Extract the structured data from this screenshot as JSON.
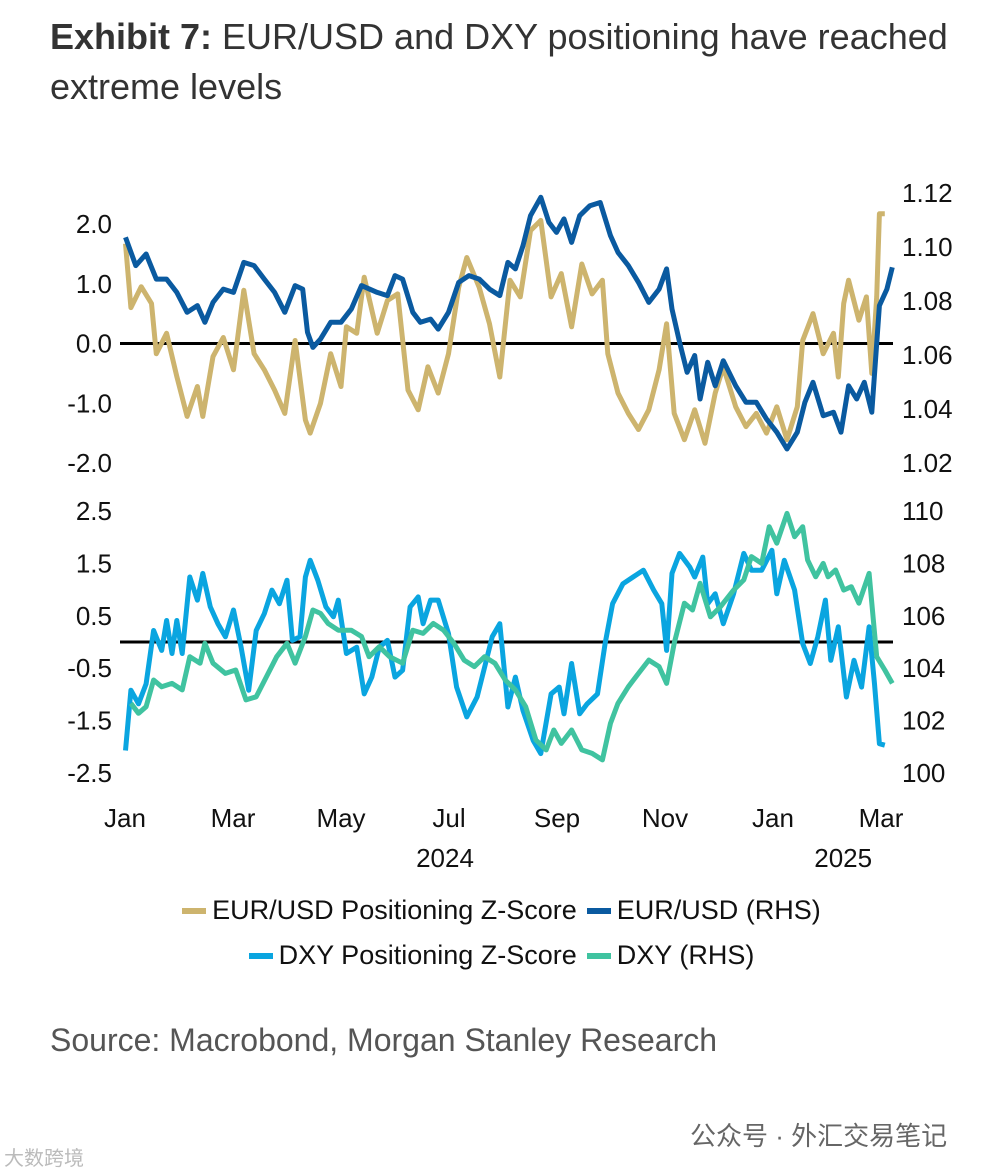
{
  "title": {
    "bold": "Exhibit 7:",
    "text": " EUR/USD and DXY positioning have reached extreme levels"
  },
  "source": "Source: Macrobond, Morgan Stanley Research",
  "watermark": "公众号 · 外汇交易笔记",
  "watermark2": "大数跨境",
  "colors": {
    "eur_z": "#CDB46E",
    "eur": "#0A5AA0",
    "dxy_z": "#0AA5E0",
    "dxy": "#40C3A0"
  },
  "chart_data": [
    {
      "type": "line",
      "panel": "top",
      "x_unit": "months since Jan 2024",
      "xlim": [
        0,
        14.3
      ],
      "x_ticks": [
        {
          "m": 0,
          "label": "Jan"
        },
        {
          "m": 2,
          "label": "Mar"
        },
        {
          "m": 4,
          "label": "May"
        },
        {
          "m": 6,
          "label": "Jul"
        },
        {
          "m": 8,
          "label": "Sep"
        },
        {
          "m": 10,
          "label": "Nov"
        },
        {
          "m": 12,
          "label": "Jan"
        },
        {
          "m": 14,
          "label": "Mar"
        }
      ],
      "year_labels": [
        {
          "m": 6,
          "label": "2024"
        },
        {
          "m": 13.3,
          "label": "2025"
        }
      ],
      "ylim_left": [
        -2.0,
        2.0
      ],
      "yticks_left": [
        "2.0",
        "1.0",
        "0.0",
        "-1.0",
        "-2.0"
      ],
      "ylim_right": [
        1.02,
        1.12
      ],
      "yticks_right": [
        "1.12",
        "1.10",
        "1.08",
        "1.06",
        "1.04",
        "1.02"
      ],
      "series": [
        {
          "name": "EUR/USD Positioning Z-Score",
          "axis": "left",
          "color_key": "eur_z",
          "x": [
            0.01,
            0.11,
            0.3,
            0.49,
            0.58,
            0.77,
            0.96,
            1.15,
            1.34,
            1.44,
            1.63,
            1.82,
            2.01,
            2.2,
            2.39,
            2.58,
            2.77,
            2.96,
            3.15,
            3.34,
            3.43,
            3.62,
            3.81,
            4.0,
            4.1,
            4.29,
            4.43,
            4.67,
            4.86,
            5.05,
            5.24,
            5.43,
            5.61,
            5.8,
            5.99,
            6.18,
            6.33,
            6.56,
            6.75,
            6.94,
            7.13,
            7.32,
            7.51,
            7.7,
            7.89,
            8.08,
            8.27,
            8.46,
            8.65,
            8.84,
            8.94,
            9.13,
            9.32,
            9.51,
            9.7,
            9.89,
            10.03,
            10.17,
            10.36,
            10.55,
            10.74,
            10.93,
            11.08,
            11.31,
            11.5,
            11.69,
            11.88,
            12.07,
            12.26,
            12.45,
            12.55,
            12.74,
            12.93,
            13.12,
            13.21,
            13.31,
            13.4,
            13.59,
            13.73,
            13.83,
            13.92,
            13.97,
            14.07
          ],
          "y": [
            1.67,
            0.6,
            0.95,
            0.67,
            -0.17,
            0.17,
            -0.55,
            -1.22,
            -0.72,
            -1.22,
            -0.22,
            0.1,
            -0.44,
            0.89,
            -0.17,
            -0.44,
            -0.78,
            -1.17,
            0.05,
            -1.28,
            -1.5,
            -1.0,
            -0.17,
            -0.72,
            0.28,
            0.17,
            1.11,
            0.17,
            0.72,
            0.83,
            -0.78,
            -1.11,
            -0.39,
            -0.83,
            -0.17,
            0.94,
            1.44,
            0.94,
            0.33,
            -0.56,
            1.06,
            0.78,
            1.89,
            2.06,
            0.78,
            1.17,
            0.28,
            1.33,
            0.83,
            1.06,
            -0.17,
            -0.83,
            -1.17,
            -1.44,
            -1.11,
            -0.44,
            0.33,
            -1.17,
            -1.61,
            -1.11,
            -1.67,
            -0.83,
            -0.39,
            -1.06,
            -1.39,
            -1.17,
            -1.5,
            -1.06,
            -1.61,
            -1.06,
            0.05,
            0.5,
            -0.17,
            0.17,
            -0.56,
            0.67,
            1.06,
            0.39,
            0.78,
            -0.5,
            0.78,
            2.17,
            2.17
          ]
        },
        {
          "name": "EUR/USD (RHS)",
          "axis": "right",
          "color_key": "eur",
          "x": [
            0.01,
            0.2,
            0.39,
            0.58,
            0.77,
            0.96,
            1.15,
            1.34,
            1.48,
            1.63,
            1.82,
            2.01,
            2.2,
            2.39,
            2.58,
            2.77,
            2.96,
            3.15,
            3.29,
            3.38,
            3.48,
            3.62,
            3.81,
            4.0,
            4.19,
            4.38,
            4.67,
            4.86,
            5.0,
            5.14,
            5.33,
            5.47,
            5.66,
            5.8,
            5.99,
            6.18,
            6.37,
            6.56,
            6.75,
            6.94,
            7.09,
            7.23,
            7.37,
            7.51,
            7.7,
            7.85,
            7.99,
            8.13,
            8.27,
            8.42,
            8.61,
            8.8,
            8.99,
            9.13,
            9.32,
            9.51,
            9.7,
            9.89,
            10.03,
            10.13,
            10.27,
            10.41,
            10.55,
            10.65,
            10.79,
            10.93,
            11.08,
            11.31,
            11.5,
            11.69,
            11.88,
            12.07,
            12.26,
            12.45,
            12.59,
            12.74,
            12.93,
            13.12,
            13.26,
            13.4,
            13.55,
            13.69,
            13.83,
            13.97,
            14.11,
            14.21
          ],
          "y": [
            1.1036,
            1.0931,
            1.0974,
            1.0881,
            1.0881,
            1.0832,
            1.0758,
            1.0783,
            1.0721,
            1.0795,
            1.0844,
            1.0832,
            1.0943,
            1.0931,
            1.0881,
            1.0832,
            1.0758,
            1.0857,
            1.0844,
            1.0684,
            1.0628,
            1.0659,
            1.0721,
            1.0721,
            1.077,
            1.0857,
            1.0832,
            1.082,
            1.0894,
            1.0881,
            1.0758,
            1.0721,
            1.0733,
            1.0696,
            1.0758,
            1.0869,
            1.0894,
            1.0881,
            1.0844,
            1.082,
            1.0943,
            1.0919,
            1.1005,
            1.1116,
            1.1184,
            1.1091,
            1.1054,
            1.1104,
            1.1017,
            1.1116,
            1.1153,
            1.1165,
            1.1042,
            1.098,
            1.0931,
            1.0869,
            1.0795,
            1.0844,
            1.0919,
            1.077,
            1.0647,
            1.0536,
            1.0598,
            1.0437,
            1.0573,
            1.0486,
            1.0579,
            1.0486,
            1.0425,
            1.0425,
            1.0363,
            1.0314,
            1.0252,
            1.0314,
            1.0425,
            1.0499,
            1.0375,
            1.0388,
            1.0314,
            1.0486,
            1.0437,
            1.0499,
            1.0388,
            1.0783,
            1.0844,
            1.0925
          ]
        }
      ]
    },
    {
      "type": "line",
      "panel": "bottom",
      "x_unit": "months since Jan 2024",
      "xlim": [
        0,
        14.3
      ],
      "ylim_left": [
        -2.5,
        2.5
      ],
      "yticks_left": [
        "2.5",
        "1.5",
        "0.5",
        "-0.5",
        "-1.5",
        "-2.5"
      ],
      "ylim_right": [
        100,
        110
      ],
      "yticks_right": [
        "110",
        "108",
        "106",
        "104",
        "102",
        "100"
      ],
      "series": [
        {
          "name": "DXY Positioning Z-Score",
          "axis": "left",
          "color_key": "dxy_z",
          "x": [
            0.01,
            0.11,
            0.25,
            0.39,
            0.53,
            0.68,
            0.77,
            0.87,
            0.96,
            1.06,
            1.2,
            1.34,
            1.44,
            1.58,
            1.72,
            1.86,
            2.01,
            2.15,
            2.29,
            2.43,
            2.58,
            2.72,
            2.86,
            3.0,
            3.1,
            3.24,
            3.34,
            3.43,
            3.57,
            3.72,
            3.86,
            3.95,
            4.1,
            4.29,
            4.43,
            4.57,
            4.71,
            4.86,
            5.0,
            5.14,
            5.28,
            5.43,
            5.52,
            5.66,
            5.8,
            5.99,
            6.14,
            6.33,
            6.52,
            6.66,
            6.8,
            6.94,
            7.09,
            7.23,
            7.37,
            7.56,
            7.7,
            7.89,
            8.04,
            8.13,
            8.27,
            8.42,
            8.56,
            8.75,
            8.89,
            9.03,
            9.22,
            9.41,
            9.6,
            9.79,
            9.94,
            10.03,
            10.13,
            10.27,
            10.46,
            10.55,
            10.7,
            10.79,
            10.93,
            11.08,
            11.27,
            11.46,
            11.6,
            11.79,
            11.98,
            12.07,
            12.21,
            12.4,
            12.55,
            12.69,
            12.83,
            12.97,
            13.07,
            13.21,
            13.36,
            13.5,
            13.64,
            13.78,
            13.88,
            13.97,
            14.07
          ],
          "y": [
            -2.07,
            -0.92,
            -1.18,
            -0.8,
            0.22,
            -0.16,
            0.41,
            -0.22,
            0.41,
            -0.22,
            1.24,
            0.8,
            1.31,
            0.67,
            0.35,
            0.1,
            0.61,
            -0.1,
            -0.92,
            0.22,
            0.54,
            0.99,
            0.73,
            1.18,
            0.03,
            0.1,
            1.24,
            1.56,
            1.18,
            0.67,
            0.48,
            0.8,
            -0.22,
            -0.1,
            -0.99,
            -0.67,
            -0.1,
            0.03,
            -0.67,
            -0.54,
            0.67,
            0.86,
            0.35,
            0.8,
            0.8,
            0.16,
            -0.86,
            -1.43,
            -1.05,
            -0.48,
            0.1,
            0.35,
            -1.24,
            -0.67,
            -1.31,
            -1.88,
            -2.13,
            -0.99,
            -0.86,
            -1.37,
            -0.41,
            -1.37,
            -1.18,
            -0.99,
            -0.03,
            0.73,
            1.11,
            1.24,
            1.37,
            0.99,
            0.73,
            -0.16,
            1.31,
            1.69,
            1.43,
            1.24,
            1.62,
            0.73,
            0.92,
            0.35,
            0.92,
            1.69,
            1.37,
            1.37,
            1.75,
            0.92,
            1.56,
            0.99,
            -0.03,
            -0.41,
            0.1,
            0.8,
            -0.35,
            0.29,
            -1.05,
            -0.35,
            -0.86,
            0.29,
            -0.8,
            -1.94,
            -1.97
          ]
        },
        {
          "name": "DXY (RHS)",
          "axis": "right",
          "color_key": "dxy",
          "x": [
            0.11,
            0.25,
            0.39,
            0.53,
            0.68,
            0.87,
            1.06,
            1.2,
            1.39,
            1.48,
            1.63,
            1.86,
            2.05,
            2.24,
            2.43,
            2.62,
            2.81,
            3.0,
            3.15,
            3.34,
            3.48,
            3.62,
            3.76,
            3.95,
            4.19,
            4.38,
            4.52,
            4.71,
            4.9,
            5.14,
            5.33,
            5.52,
            5.71,
            5.9,
            6.09,
            6.28,
            6.47,
            6.66,
            6.85,
            7.04,
            7.23,
            7.42,
            7.61,
            7.8,
            7.94,
            8.08,
            8.27,
            8.46,
            8.65,
            8.84,
            8.99,
            9.13,
            9.32,
            9.51,
            9.7,
            9.89,
            10.03,
            10.17,
            10.36,
            10.51,
            10.65,
            10.84,
            11.03,
            11.27,
            11.46,
            11.6,
            11.79,
            11.93,
            12.07,
            12.26,
            12.4,
            12.55,
            12.64,
            12.79,
            12.93,
            13.02,
            13.16,
            13.31,
            13.45,
            13.59,
            13.78,
            13.92,
            14.07,
            14.21
          ],
          "y": [
            102.66,
            102.28,
            102.53,
            103.55,
            103.29,
            103.42,
            103.17,
            104.44,
            104.19,
            104.95,
            104.19,
            103.8,
            103.93,
            102.79,
            102.91,
            103.68,
            104.44,
            104.95,
            104.19,
            105.21,
            106.22,
            106.09,
            105.71,
            105.45,
            105.45,
            105.21,
            104.44,
            104.82,
            104.44,
            104.19,
            105.45,
            105.33,
            105.71,
            105.45,
            104.95,
            104.31,
            104.06,
            104.44,
            104.19,
            103.55,
            103.17,
            102.53,
            101.26,
            100.88,
            101.64,
            101.13,
            101.64,
            100.88,
            100.75,
            100.5,
            101.9,
            102.66,
            103.29,
            103.8,
            104.31,
            104.06,
            103.42,
            104.95,
            106.48,
            106.22,
            107.24,
            105.96,
            106.35,
            106.98,
            107.37,
            108.26,
            108.0,
            109.4,
            108.77,
            109.91,
            109.02,
            109.4,
            108.13,
            107.49,
            108.0,
            107.49,
            107.75,
            106.98,
            107.11,
            106.48,
            107.62,
            104.44,
            103.93,
            103.42
          ]
        }
      ]
    }
  ]
}
